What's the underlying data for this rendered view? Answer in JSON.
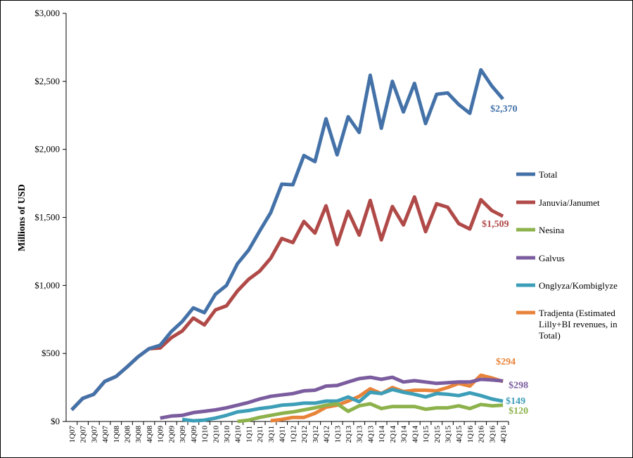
{
  "chart_data": {
    "type": "line",
    "title": "",
    "xlabel": "",
    "ylabel": "Millions of USD",
    "ylim": [
      0,
      3000
    ],
    "y_ticks": [
      "$0",
      "$500",
      "$1,000",
      "$1,500",
      "$2,000",
      "$2,500",
      "$3,000"
    ],
    "y_tick_values": [
      0,
      500,
      1000,
      1500,
      2000,
      2500,
      3000
    ],
    "grid": false,
    "legend_position": "right",
    "categories": [
      "1Q07",
      "2Q07",
      "3Q07",
      "4Q07",
      "1Q08",
      "2Q08",
      "3Q08",
      "4Q08",
      "1Q09",
      "2Q09",
      "3Q09",
      "4Q09",
      "1Q10",
      "2Q10",
      "3Q10",
      "4Q10",
      "1Q11",
      "2Q11",
      "3Q11",
      "4Q11",
      "1Q12",
      "2Q12",
      "3Q12",
      "4Q12",
      "1Q13",
      "2Q13",
      "3Q13",
      "4Q13",
      "1Q14",
      "2Q14",
      "3Q14",
      "4Q14",
      "1Q15",
      "2Q15",
      "3Q15",
      "4Q15",
      "1Q16",
      "2Q16",
      "3Q16",
      "4Q16"
    ],
    "series": [
      {
        "name": "Total",
        "color": "#4472a8",
        "end_label": "$2,370",
        "values": [
          85,
          170,
          200,
          295,
          330,
          400,
          475,
          535,
          560,
          660,
          735,
          835,
          800,
          935,
          1000,
          1160,
          1260,
          1400,
          1535,
          1745,
          1740,
          1955,
          1910,
          2225,
          1960,
          2240,
          2125,
          2545,
          2155,
          2500,
          2275,
          2485,
          2190,
          2405,
          2415,
          2330,
          2265,
          2585,
          2465,
          2370
        ]
      },
      {
        "name": "Januvia/Janumet",
        "color": "#b04a48",
        "end_label": "$1,509",
        "values": [
          85,
          170,
          200,
          295,
          330,
          400,
          475,
          535,
          540,
          615,
          665,
          760,
          710,
          820,
          850,
          960,
          1045,
          1105,
          1200,
          1345,
          1315,
          1470,
          1385,
          1585,
          1300,
          1545,
          1370,
          1625,
          1335,
          1580,
          1445,
          1650,
          1395,
          1600,
          1575,
          1455,
          1415,
          1630,
          1550,
          1509
        ]
      },
      {
        "name": "Nesina",
        "color": "#8db24c",
        "end_label": "$120",
        "values": [
          null,
          null,
          null,
          null,
          null,
          null,
          null,
          null,
          null,
          null,
          null,
          null,
          null,
          null,
          null,
          0,
          10,
          30,
          45,
          60,
          70,
          85,
          100,
          120,
          130,
          75,
          115,
          130,
          95,
          110,
          110,
          110,
          90,
          100,
          100,
          115,
          95,
          125,
          115,
          120
        ]
      },
      {
        "name": "Galvus",
        "color": "#7b5c9e",
        "end_label": "$298",
        "values": [
          null,
          null,
          null,
          null,
          null,
          null,
          null,
          null,
          25,
          40,
          45,
          65,
          75,
          85,
          100,
          120,
          140,
          165,
          185,
          195,
          205,
          225,
          230,
          260,
          265,
          290,
          315,
          325,
          310,
          325,
          290,
          300,
          290,
          280,
          285,
          290,
          290,
          310,
          305,
          298
        ]
      },
      {
        "name": "Onglyza/Kombiglyze",
        "color": "#3d9eb8",
        "end_label": "$149",
        "values": [
          null,
          null,
          null,
          null,
          null,
          null,
          null,
          null,
          null,
          null,
          15,
          5,
          10,
          25,
          45,
          70,
          80,
          95,
          105,
          120,
          125,
          135,
          135,
          150,
          150,
          180,
          145,
          215,
          205,
          235,
          215,
          200,
          180,
          205,
          200,
          190,
          210,
          190,
          165,
          149
        ]
      },
      {
        "name": "Tradjenta (Estimated Lilly+BI revenues, in Total)",
        "legend_lines": [
          "Tradjenta (Estimated",
          "Lilly+BI revenues, in",
          "Total)"
        ],
        "color": "#e8833a",
        "end_label": "$294",
        "values": [
          null,
          null,
          null,
          null,
          null,
          null,
          null,
          null,
          null,
          null,
          null,
          null,
          null,
          null,
          null,
          null,
          null,
          null,
          5,
          15,
          30,
          30,
          60,
          105,
          120,
          150,
          185,
          240,
          205,
          250,
          220,
          230,
          230,
          225,
          250,
          280,
          260,
          340,
          320,
          294
        ]
      }
    ]
  }
}
